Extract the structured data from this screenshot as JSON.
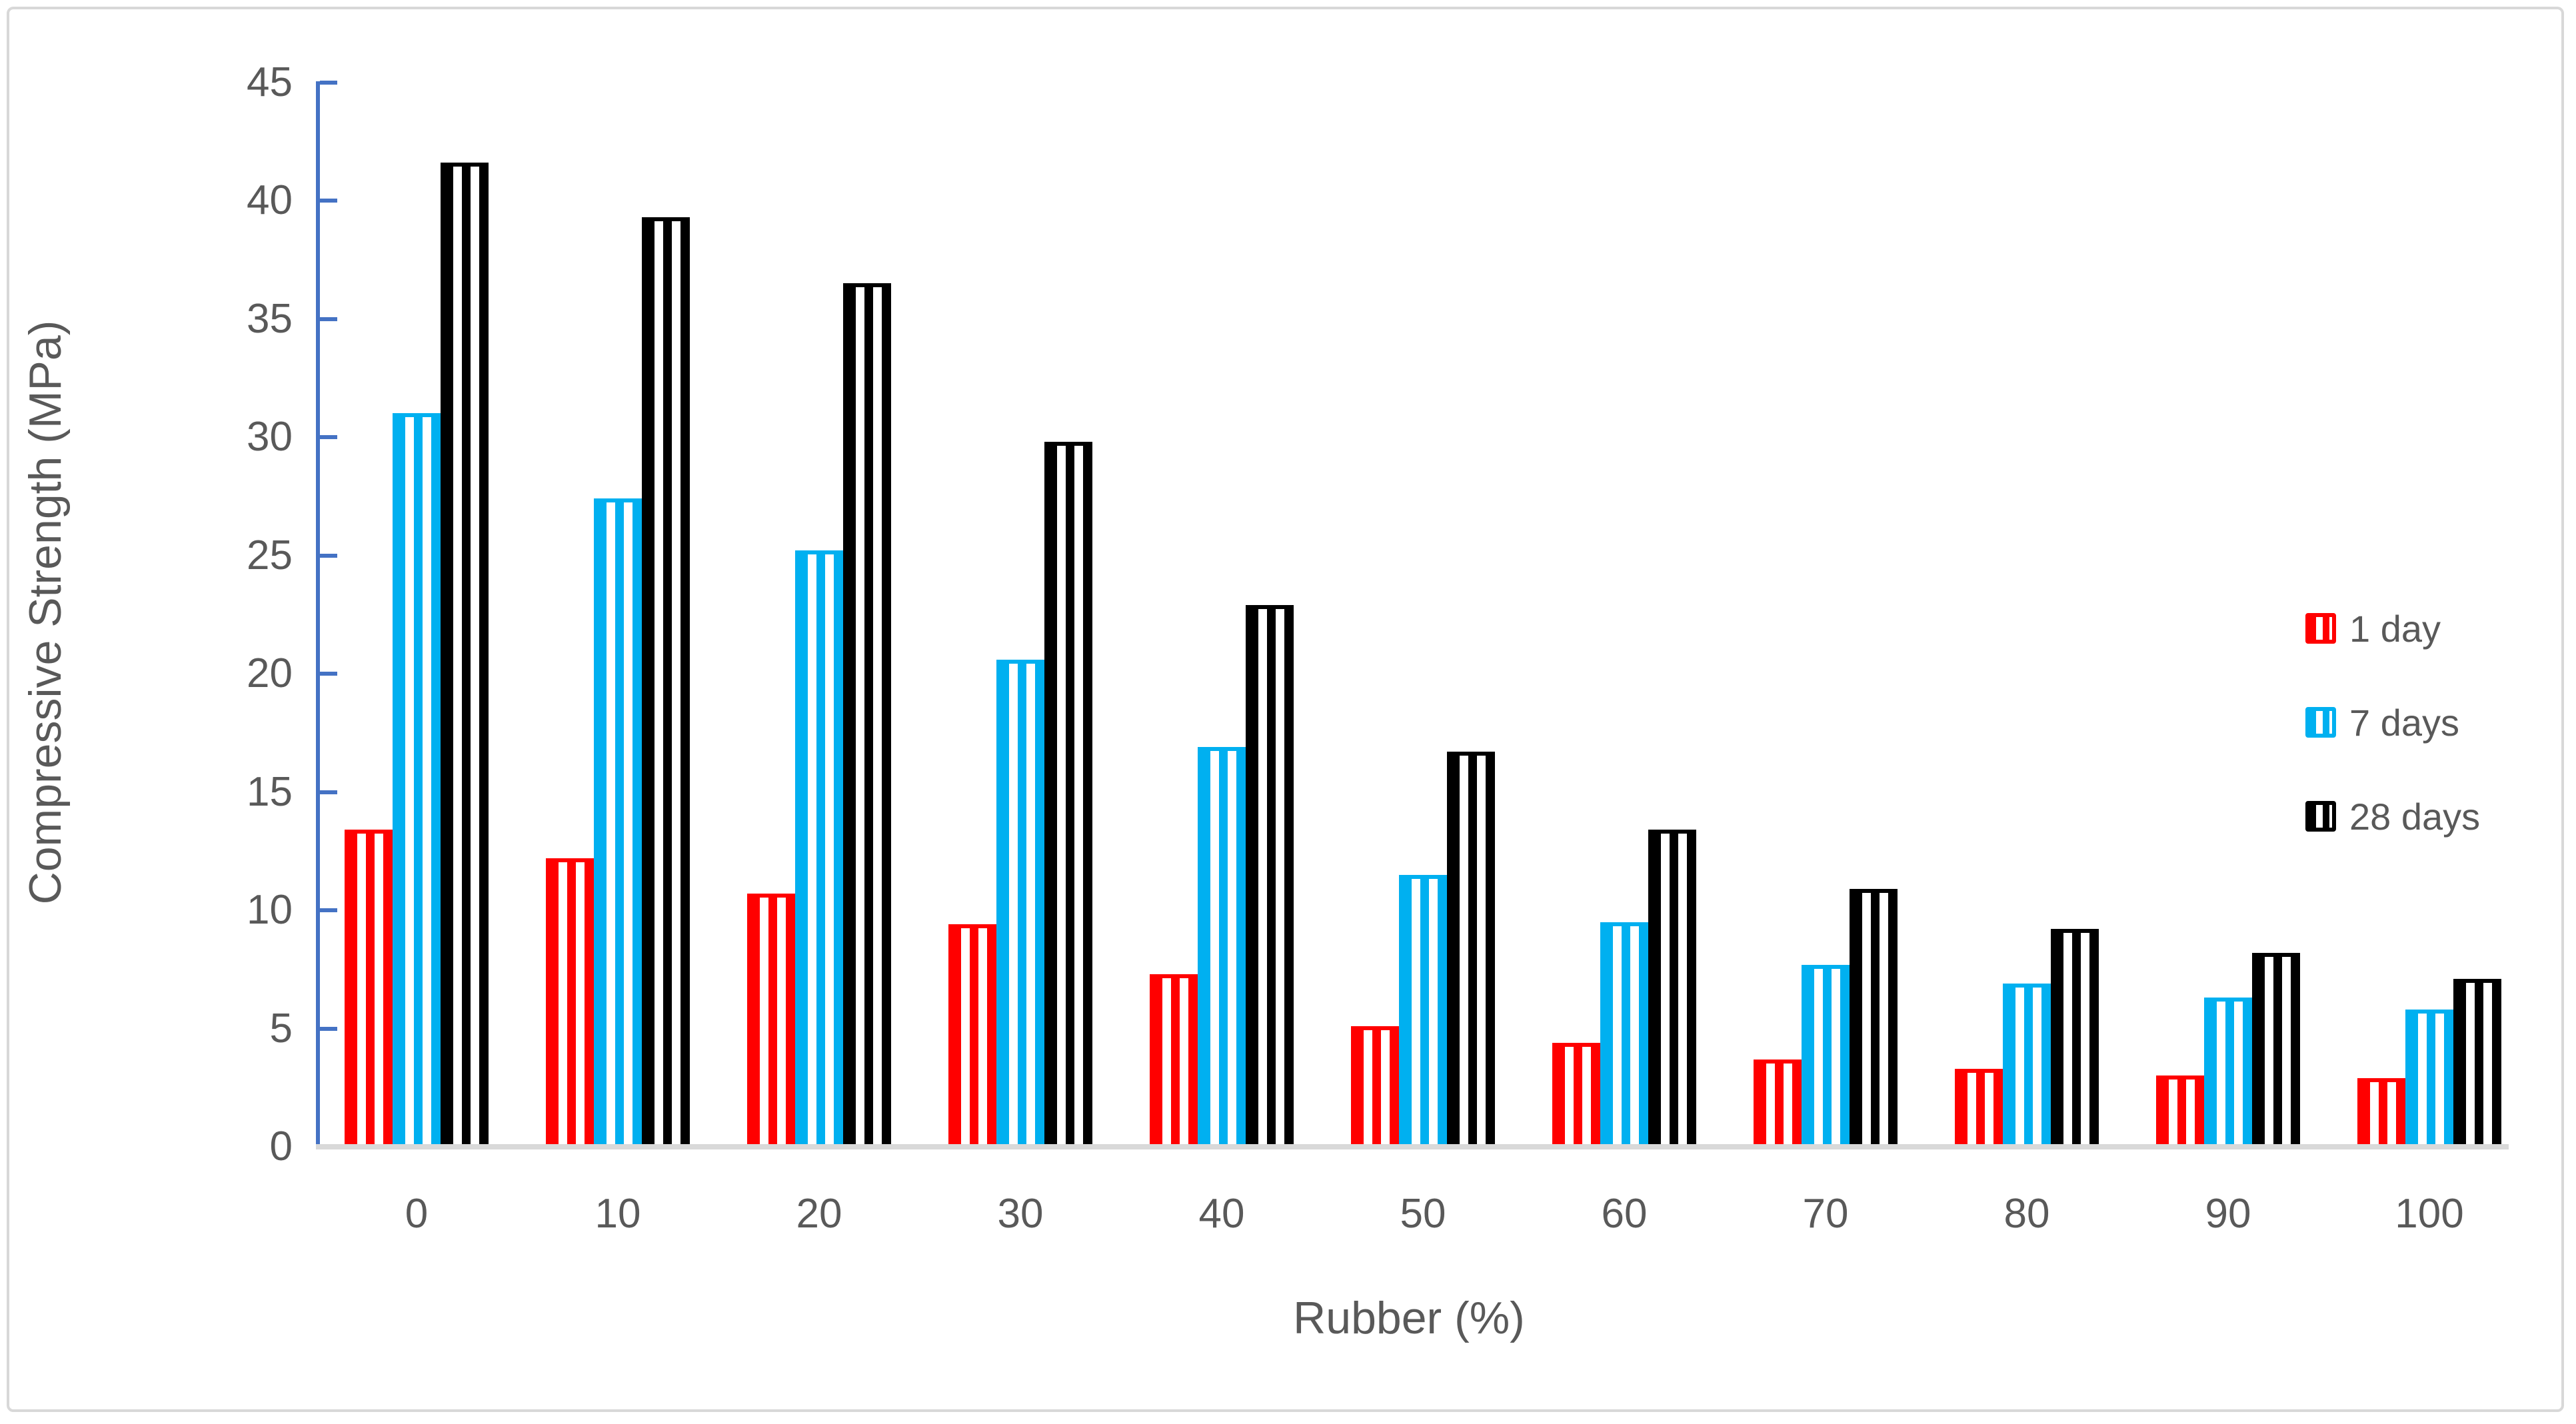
{
  "chart_data": {
    "type": "bar",
    "title": "",
    "xlabel": "Rubber (%)",
    "ylabel": "Compressive Strength (MPa)",
    "categories": [
      "0",
      "10",
      "20",
      "30",
      "40",
      "50",
      "60",
      "70",
      "80",
      "90",
      "100"
    ],
    "series": [
      {
        "name": "1 day",
        "color": "#ff0000",
        "values": [
          13.4,
          12.2,
          10.7,
          9.4,
          7.3,
          5.1,
          4.4,
          3.7,
          3.3,
          3.0,
          2.9
        ]
      },
      {
        "name": "7 days",
        "color": "#00b0f0",
        "values": [
          31.0,
          27.4,
          25.2,
          20.6,
          16.9,
          11.5,
          9.5,
          7.7,
          6.9,
          6.3,
          5.8
        ]
      },
      {
        "name": "28 days",
        "color": "#000000",
        "values": [
          41.6,
          39.3,
          36.5,
          29.8,
          22.9,
          16.7,
          13.4,
          10.9,
          9.2,
          8.2,
          7.1
        ]
      }
    ],
    "ylim": [
      0,
      45
    ],
    "ytick_step": 5,
    "ytick_labels": [
      "0",
      "5",
      "10",
      "15",
      "20",
      "25",
      "30",
      "35",
      "40",
      "45"
    ],
    "grid": "off",
    "legend_position": "right-overlay",
    "bar_fill_pattern": "vertical-stripes"
  },
  "colors": {
    "axis_line": "#4472c4",
    "text": "#595959",
    "baseline": "#d9d9d9",
    "figure_border": "#d8d8d8",
    "background": "#ffffff"
  }
}
